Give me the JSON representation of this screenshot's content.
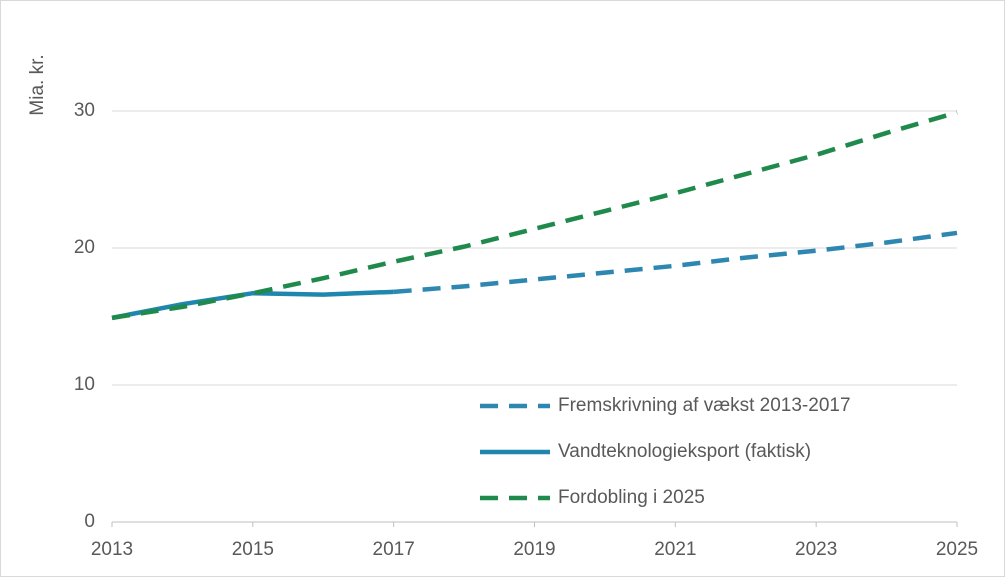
{
  "chart_data": {
    "type": "line",
    "y_label": "Mia. kr.",
    "x": [
      2013,
      2014,
      2015,
      2016,
      2017,
      2018,
      2019,
      2020,
      2021,
      2022,
      2023,
      2024,
      2025
    ],
    "xlim": [
      2013,
      2025
    ],
    "xticks": [
      2013,
      2015,
      2017,
      2019,
      2021,
      2023,
      2025
    ],
    "ylim": [
      0,
      35
    ],
    "yticks": [
      0,
      10,
      20,
      30
    ],
    "grid": true,
    "legend": "lower right",
    "series": [
      {
        "name": "Fremskrivning af vækst 2013-2017",
        "color": "#2e87b1",
        "dashed": true,
        "values": [
          null,
          null,
          null,
          null,
          16.8,
          17.2,
          17.7,
          18.2,
          18.7,
          19.3,
          19.8,
          20.4,
          21.1
        ]
      },
      {
        "name": "Vandteknologieksport (faktisk)",
        "color": "#1f86ad",
        "dashed": false,
        "values": [
          14.9,
          15.9,
          16.7,
          16.6,
          16.8,
          null,
          null,
          null,
          null,
          null,
          null,
          null,
          null
        ]
      },
      {
        "name": "Fordobling i 2025",
        "color": "#1f8a4c",
        "dashed": true,
        "values": [
          14.9,
          15.7,
          16.7,
          17.8,
          19.0,
          20.1,
          21.4,
          22.7,
          24.0,
          25.4,
          26.8,
          28.4,
          29.9
        ]
      }
    ]
  }
}
